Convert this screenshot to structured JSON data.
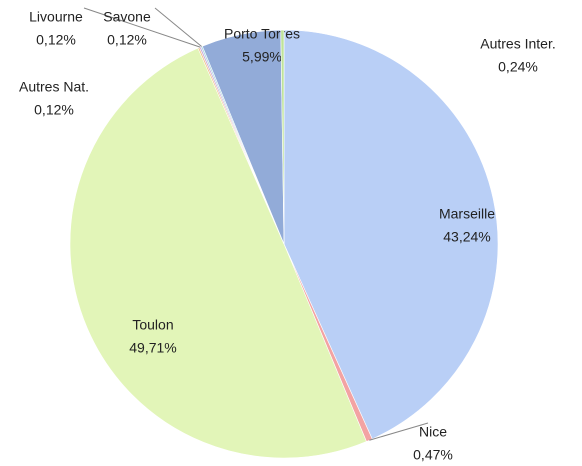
{
  "chart_data": {
    "type": "pie",
    "categories": [
      "Marseille",
      "Nice",
      "Toulon",
      "Autres Nat.",
      "Livourne",
      "Savone",
      "Porto Torres",
      "Autres Inter."
    ],
    "values": [
      43.24,
      0.47,
      49.71,
      0.12,
      0.12,
      0.12,
      5.99,
      0.24
    ],
    "value_labels": [
      "43,24%",
      "0,47%",
      "49,71%",
      "0,12%",
      "0,12%",
      "0,12%",
      "5,99%",
      "0,24%"
    ],
    "colors": [
      "#b9cff6",
      "#f3a3a3",
      "#e2f5b8",
      "#f1c08a",
      "#c7a6d9",
      "#a9d7e3",
      "#92abd8",
      "#bfe39a"
    ]
  }
}
